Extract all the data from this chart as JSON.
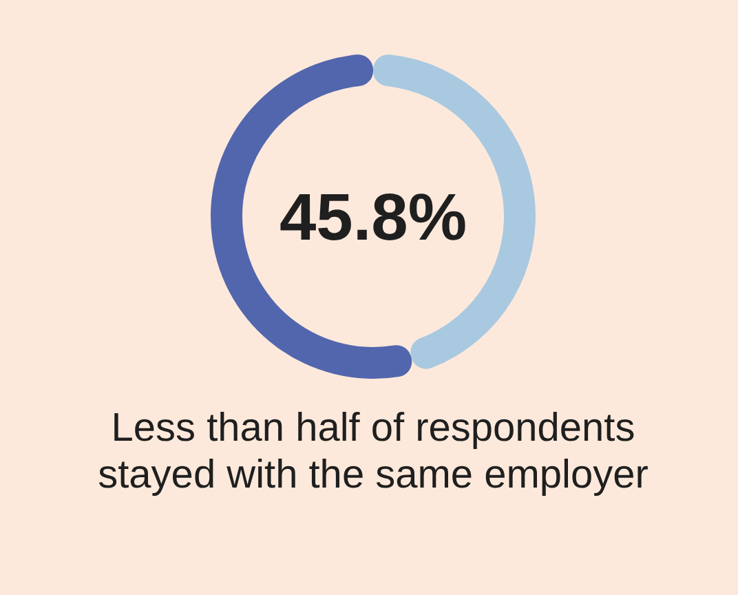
{
  "chart_data": {
    "type": "donut",
    "title": "Less than half of respondents stayed with the same employer",
    "categories": [
      null,
      null
    ],
    "values": [
      45.8,
      54.2
    ],
    "colors": [
      "#a9c9e1",
      "#5266ae"
    ],
    "annotations": [
      "45.8%"
    ]
  }
}
